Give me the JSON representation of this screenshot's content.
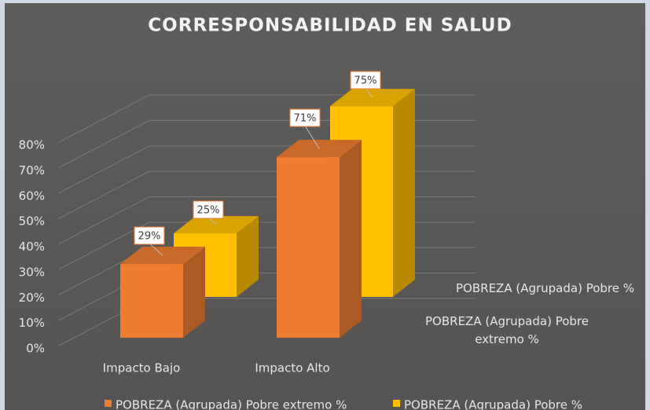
{
  "chart_data": {
    "type": "bar3d",
    "title": "CORRESPONSABILIDAD EN SALUD",
    "categories": [
      "Impacto Bajo",
      "Impacto Alto"
    ],
    "series": [
      {
        "name": "POBREZA (Agrupada) Pobre extremo %",
        "color": "#ed7d31",
        "values": [
          29,
          71
        ],
        "value_labels": [
          "29%",
          "71%"
        ]
      },
      {
        "name": "POBREZA (Agrupada) Pobre %",
        "color": "#ffc000",
        "values": [
          25,
          75
        ],
        "value_labels": [
          "25%",
          "75%"
        ]
      }
    ],
    "ylim": [
      0,
      80
    ],
    "yticks": [
      {
        "value": 0,
        "label": "0%"
      },
      {
        "value": 10,
        "label": "10%"
      },
      {
        "value": 20,
        "label": "20%"
      },
      {
        "value": 30,
        "label": "30%"
      },
      {
        "value": 40,
        "label": "40%"
      },
      {
        "value": 50,
        "label": "50%"
      },
      {
        "value": 60,
        "label": "60%"
      },
      {
        "value": 70,
        "label": "70%"
      },
      {
        "value": 80,
        "label": "80%"
      }
    ],
    "grid": true
  }
}
